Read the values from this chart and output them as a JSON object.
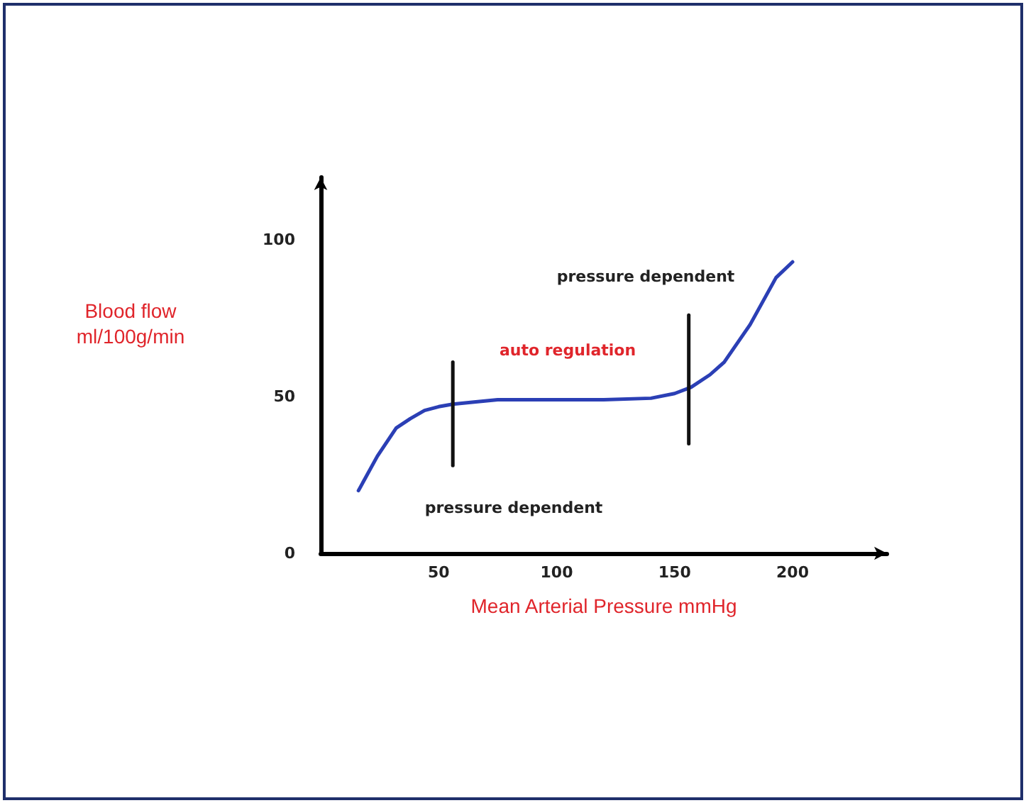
{
  "chart_data": {
    "type": "line",
    "xlabel": "Mean Arterial Pressure mmHg",
    "ylabel": "Blood flow\nml/100g/min",
    "xlim": [
      0,
      240
    ],
    "ylim": [
      0,
      120
    ],
    "xticks": [
      50,
      100,
      150,
      200
    ],
    "yticks": [
      0,
      50,
      100
    ],
    "grid": false,
    "marker": "none",
    "line_style": "solid",
    "series": [
      {
        "color": "#2b3fb5",
        "x": [
          16,
          24,
          32,
          38,
          44,
          50,
          56,
          65,
          75,
          90,
          100,
          120,
          140,
          150,
          157,
          165,
          171,
          182,
          193,
          200
        ],
        "values": [
          20,
          31,
          40,
          43,
          45.6,
          46.8,
          47.6,
          48.3,
          49,
          49,
          49,
          49,
          49.5,
          51,
          53,
          57,
          61,
          73,
          88,
          93
        ]
      },
      {
        "color": "#111111",
        "x": [
          56,
          56
        ],
        "values": [
          28,
          61
        ]
      },
      {
        "color": "#111111",
        "x": [
          156,
          156
        ],
        "values": [
          35,
          76
        ]
      }
    ],
    "annotations": [
      "pressure dependent",
      "auto regulation",
      "pressure dependent"
    ]
  }
}
